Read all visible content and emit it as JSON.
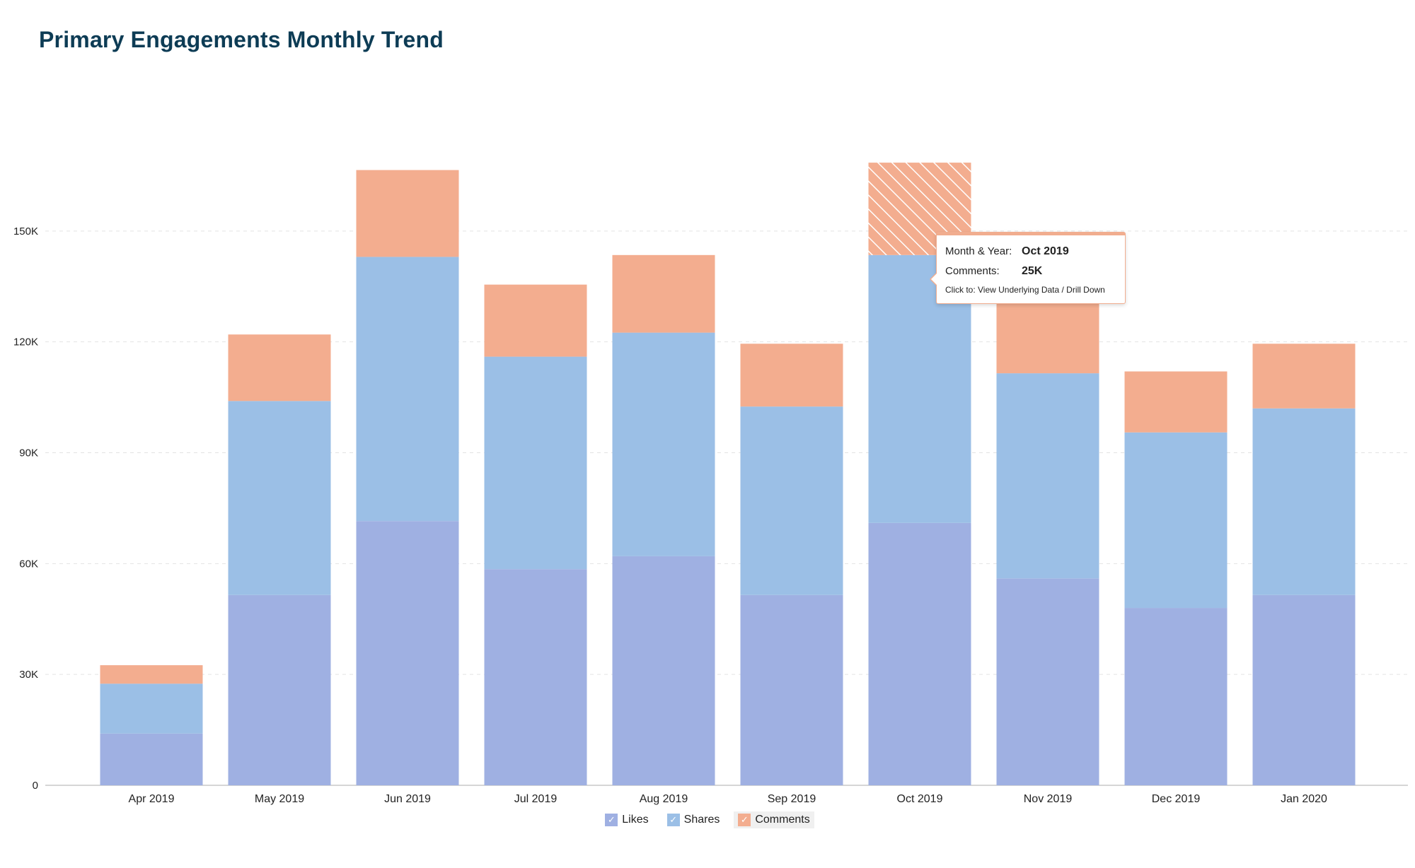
{
  "page": {
    "title": "Primary Engagements Monthly Trend"
  },
  "chart_data": {
    "type": "bar",
    "stacked": true,
    "title": "Primary Engagements Monthly Trend",
    "xlabel": "",
    "ylabel": "",
    "ylim": [
      0,
      180000
    ],
    "yticks": [
      0,
      30000,
      60000,
      90000,
      120000,
      150000
    ],
    "ytick_labels": [
      "0",
      "30K",
      "60K",
      "90K",
      "120K",
      "150K"
    ],
    "grid": true,
    "legend_position": "bottom-center",
    "categories": [
      "Apr 2019",
      "May 2019",
      "Jun 2019",
      "Jul 2019",
      "Aug 2019",
      "Sep 2019",
      "Oct 2019",
      "Nov 2019",
      "Dec 2019",
      "Jan 2020"
    ],
    "series": [
      {
        "name": "Likes",
        "color": "#9fb0e2",
        "values": [
          14000,
          51500,
          71500,
          58500,
          62000,
          51500,
          71000,
          56000,
          48000,
          51500
        ]
      },
      {
        "name": "Shares",
        "color": "#9bbfe6",
        "values": [
          13500,
          52500,
          71500,
          57500,
          60500,
          51000,
          72500,
          55500,
          47500,
          50500
        ]
      },
      {
        "name": "Comments",
        "color": "#f3ad8f",
        "values": [
          5000,
          18000,
          23500,
          19500,
          21000,
          17000,
          25000,
          19500,
          16500,
          17500
        ]
      }
    ],
    "highlight": {
      "category": "Oct 2019",
      "series": "Comments"
    }
  },
  "legend": {
    "check_glyph": "✓",
    "items": [
      {
        "label": "Likes",
        "color": "#9fb0e2"
      },
      {
        "label": "Shares",
        "color": "#9bbfe6"
      },
      {
        "label": "Comments",
        "color": "#f3ad8f"
      }
    ]
  },
  "tooltip": {
    "row1_label": "Month & Year:",
    "row1_value": "Oct 2019",
    "row2_label": "Comments:",
    "row2_value": "25K",
    "hint": "Click to: View Underlying Data / Drill Down"
  }
}
